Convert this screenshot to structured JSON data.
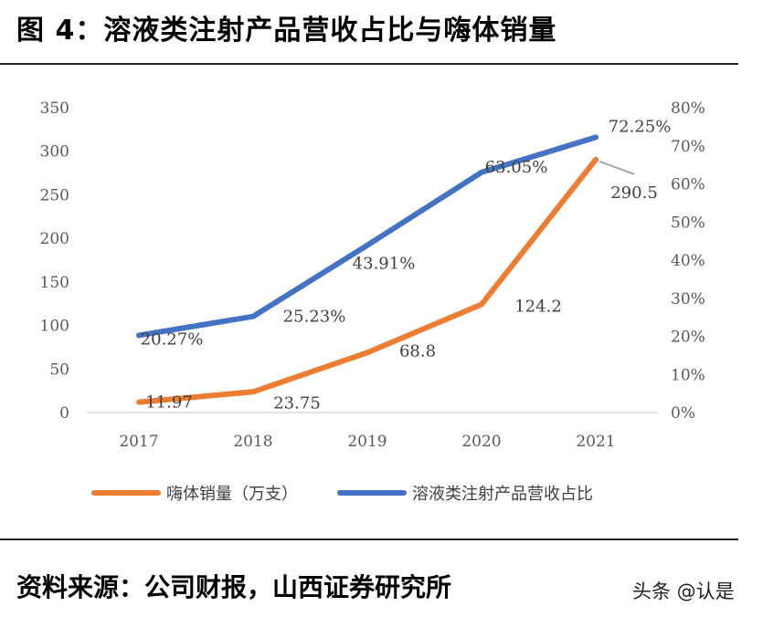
{
  "figure": {
    "title": "图 4：溶液类注射产品营收占比与嗨体销量",
    "source": "资料来源：公司财报，山西证券研究所",
    "watermark": "头条 @认是"
  },
  "chart_data": {
    "type": "line",
    "categories": [
      "2017",
      "2018",
      "2019",
      "2020",
      "2021"
    ],
    "y_left": {
      "ticks": [
        "0",
        "50",
        "100",
        "150",
        "200",
        "250",
        "300",
        "350"
      ],
      "ylim": [
        0,
        350
      ]
    },
    "y_right": {
      "ticks": [
        "0%",
        "10%",
        "20%",
        "30%",
        "40%",
        "50%",
        "60%",
        "70%",
        "80%"
      ],
      "ylim": [
        0,
        80
      ]
    },
    "grid": false,
    "legend_position": "bottom",
    "series": [
      {
        "name": "嗨体销量（万支）",
        "axis": "left",
        "color": "#ED7D31",
        "values": [
          11.97,
          23.75,
          68.8,
          124.2,
          290.5
        ],
        "labels": [
          "11.97",
          "23.75",
          "68.8",
          "124.2",
          "290.5"
        ]
      },
      {
        "name": "溶液类注射产品营收占比",
        "axis": "right",
        "color": "#4472C4",
        "values": [
          20.27,
          25.23,
          43.91,
          63.05,
          72.25
        ],
        "labels": [
          "20.27%",
          "25.23%",
          "43.91%",
          "63.05%",
          "72.25%"
        ]
      }
    ]
  }
}
